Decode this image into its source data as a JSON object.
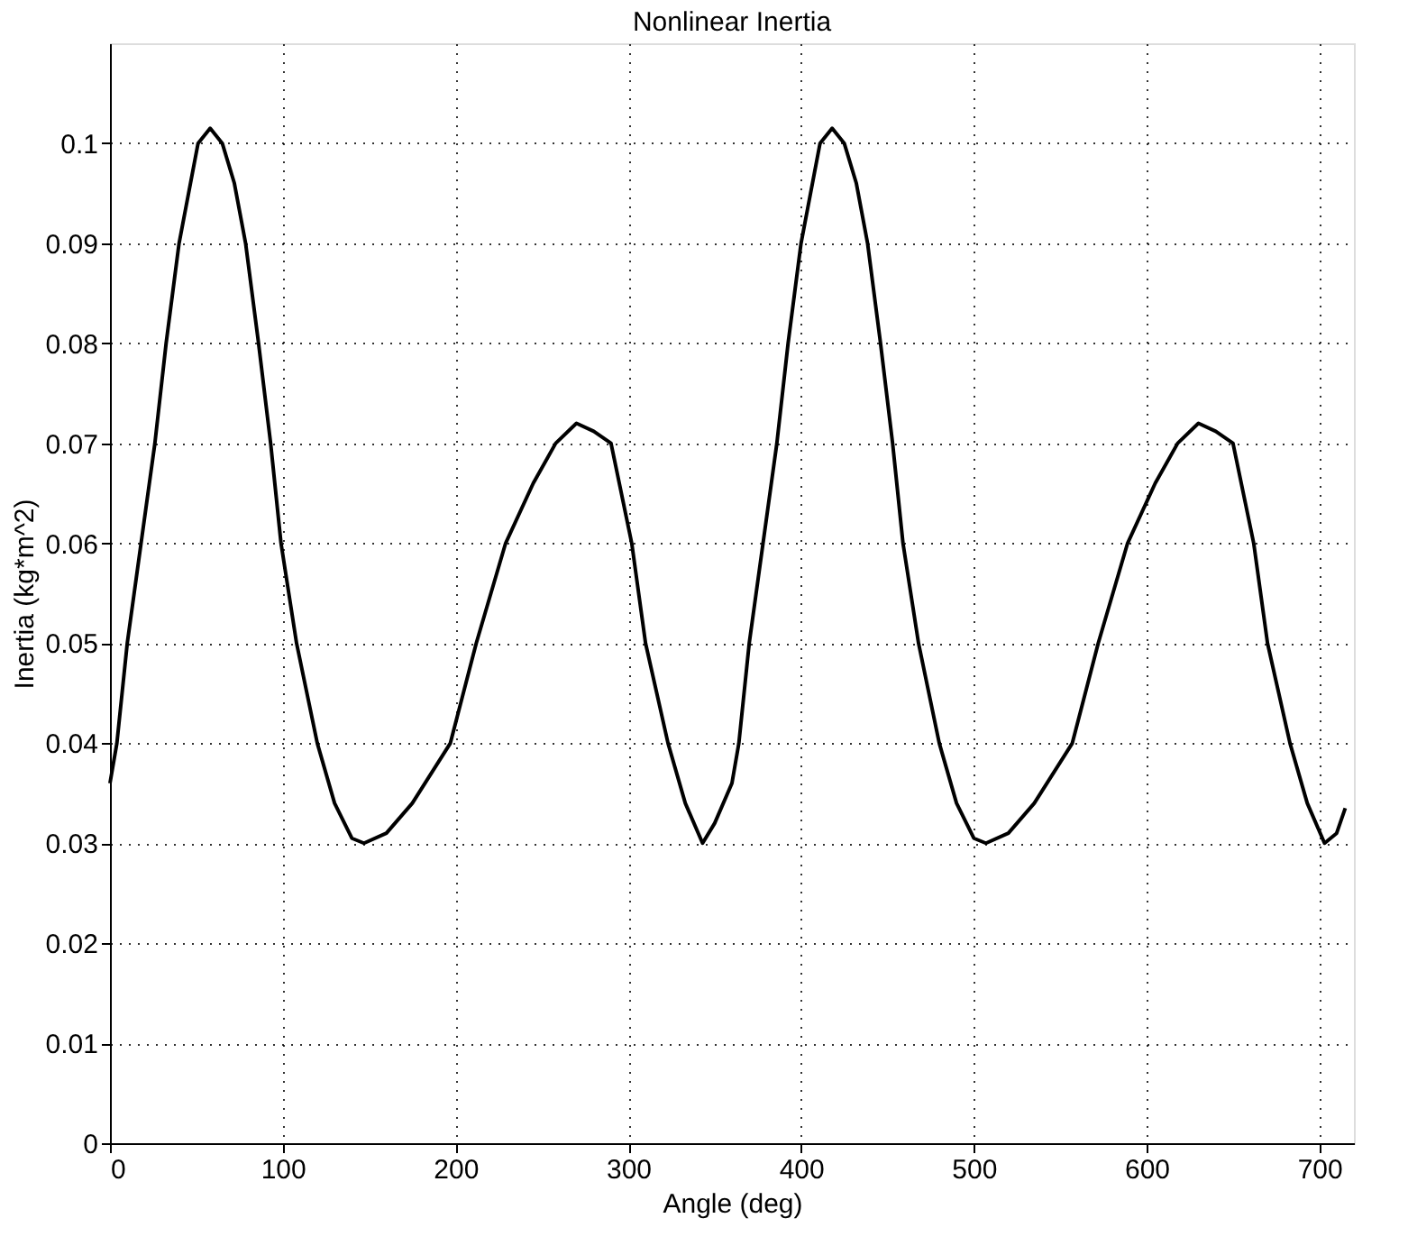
{
  "chart_data": {
    "type": "line",
    "title": "Nonlinear Inertia",
    "xlabel": "Angle (deg)",
    "ylabel": "Inertia (kg*m^2)",
    "xlim": [
      0,
      720
    ],
    "ylim": [
      0,
      0.11
    ],
    "xticks": [
      0,
      100,
      200,
      300,
      400,
      500,
      600,
      700
    ],
    "yticks": [
      0,
      0.01,
      0.02,
      0.03,
      0.04,
      0.05,
      0.06,
      0.07,
      0.08,
      0.09,
      0.1
    ],
    "grid": true,
    "marker": "none",
    "line_style": "solid",
    "series": [
      {
        "color": "#000000",
        "x": [
          0,
          4,
          10,
          18,
          26,
          32.5,
          40,
          51,
          58,
          65,
          72,
          78.5,
          86,
          93,
          99,
          108,
          120,
          130,
          140,
          147,
          160,
          175,
          197,
          212,
          229,
          245,
          258,
          270,
          280,
          290,
          302,
          310,
          323,
          333,
          343,
          350,
          360,
          364,
          370,
          378,
          386,
          392.5,
          400,
          411,
          418,
          425,
          432,
          438.5,
          446,
          453,
          459,
          468,
          480,
          490,
          500,
          507,
          520,
          535,
          557,
          572,
          589,
          605,
          618,
          630,
          640,
          650,
          662,
          670,
          683,
          693,
          703,
          710,
          715
        ],
        "values": [
          0.036,
          0.04,
          0.05,
          0.06,
          0.07,
          0.08,
          0.09,
          0.1,
          0.1015,
          0.1,
          0.096,
          0.09,
          0.08,
          0.07,
          0.06,
          0.05,
          0.04,
          0.034,
          0.0305,
          0.03,
          0.031,
          0.034,
          0.04,
          0.05,
          0.06,
          0.066,
          0.07,
          0.072,
          0.0712,
          0.07,
          0.06,
          0.05,
          0.04,
          0.034,
          0.03,
          0.032,
          0.036,
          0.04,
          0.05,
          0.06,
          0.07,
          0.08,
          0.09,
          0.1,
          0.1015,
          0.1,
          0.096,
          0.09,
          0.08,
          0.07,
          0.06,
          0.05,
          0.04,
          0.034,
          0.0305,
          0.03,
          0.031,
          0.034,
          0.04,
          0.05,
          0.06,
          0.066,
          0.07,
          0.072,
          0.0712,
          0.07,
          0.06,
          0.05,
          0.04,
          0.034,
          0.03,
          0.031,
          0.0335
        ]
      }
    ]
  }
}
